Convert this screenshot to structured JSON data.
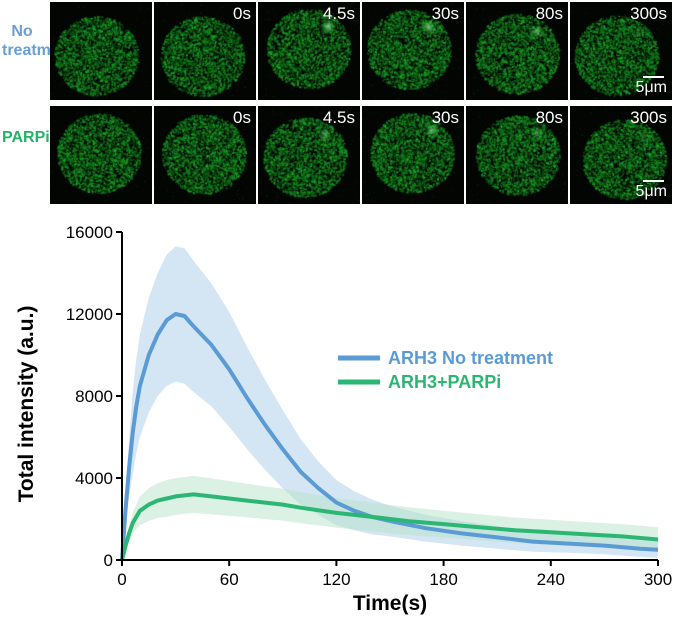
{
  "micrographs": {
    "rows": [
      {
        "label_line1": "No",
        "label_line2": "treatment",
        "label_color": "#6a9fd3",
        "time_labels": [
          "",
          "0s",
          "4.5s",
          "30s",
          "80s",
          "300s"
        ],
        "scale_label": "5μm",
        "spot_intensity": [
          0,
          0,
          0.8,
          0.75,
          0.55,
          0.15
        ]
      },
      {
        "label_line1": "PARPi",
        "label_line2": "",
        "label_color": "#22b36a",
        "time_labels": [
          "",
          "0s",
          "4.5s",
          "30s",
          "80s",
          "300s"
        ],
        "scale_label": "5μm",
        "spot_intensity": [
          0,
          0,
          0.45,
          0.6,
          0.4,
          0.2
        ]
      }
    ]
  },
  "chart_data": {
    "type": "line",
    "xlabel": "Time(s)",
    "ylabel": "Total intensity (a.u.)",
    "xlim": [
      0,
      300
    ],
    "ylim": [
      0,
      16000
    ],
    "xticks": [
      "0",
      "60",
      "120",
      "180",
      "240",
      "300"
    ],
    "yticks": [
      "0",
      "4000",
      "8000",
      "12000",
      "16000"
    ],
    "legend_position": "right",
    "series": [
      {
        "name": "ARH3 No treatment",
        "color": "#5b9bd5",
        "band_color": "#a9cbea",
        "x": [
          0,
          2,
          4,
          6,
          8,
          10,
          15,
          20,
          25,
          30,
          35,
          40,
          50,
          60,
          70,
          80,
          90,
          100,
          110,
          120,
          130,
          140,
          150,
          170,
          190,
          210,
          230,
          250,
          270,
          290,
          300
        ],
        "y": [
          0,
          2500,
          4500,
          6200,
          7500,
          8500,
          10000,
          11000,
          11700,
          12000,
          11900,
          11400,
          10500,
          9300,
          7900,
          6600,
          5400,
          4300,
          3500,
          2800,
          2400,
          2100,
          1900,
          1550,
          1300,
          1100,
          900,
          800,
          700,
          550,
          500
        ],
        "sd": [
          0,
          900,
          1400,
          2000,
          2300,
          2500,
          2800,
          3000,
          3200,
          3300,
          3300,
          3200,
          3000,
          2800,
          2500,
          2200,
          1900,
          1600,
          1300,
          1100,
          950,
          850,
          750,
          650,
          600,
          550,
          500,
          450,
          420,
          400,
          400
        ]
      },
      {
        "name": "ARH3+PARPi",
        "color": "#2bb673",
        "band_color": "#b5e3c7",
        "x": [
          0,
          2,
          4,
          6,
          8,
          10,
          15,
          20,
          25,
          30,
          40,
          50,
          60,
          70,
          80,
          90,
          100,
          120,
          140,
          160,
          180,
          200,
          220,
          240,
          260,
          280,
          300
        ],
        "y": [
          0,
          700,
          1300,
          1800,
          2100,
          2400,
          2700,
          2900,
          3000,
          3100,
          3200,
          3100,
          3000,
          2900,
          2800,
          2700,
          2550,
          2300,
          2100,
          1900,
          1750,
          1600,
          1450,
          1350,
          1250,
          1150,
          1000
        ],
        "sd": [
          0,
          200,
          400,
          500,
          600,
          700,
          800,
          850,
          900,
          900,
          900,
          880,
          850,
          820,
          800,
          780,
          760,
          720,
          700,
          680,
          650,
          630,
          620,
          610,
          600,
          600,
          600
        ]
      }
    ]
  }
}
